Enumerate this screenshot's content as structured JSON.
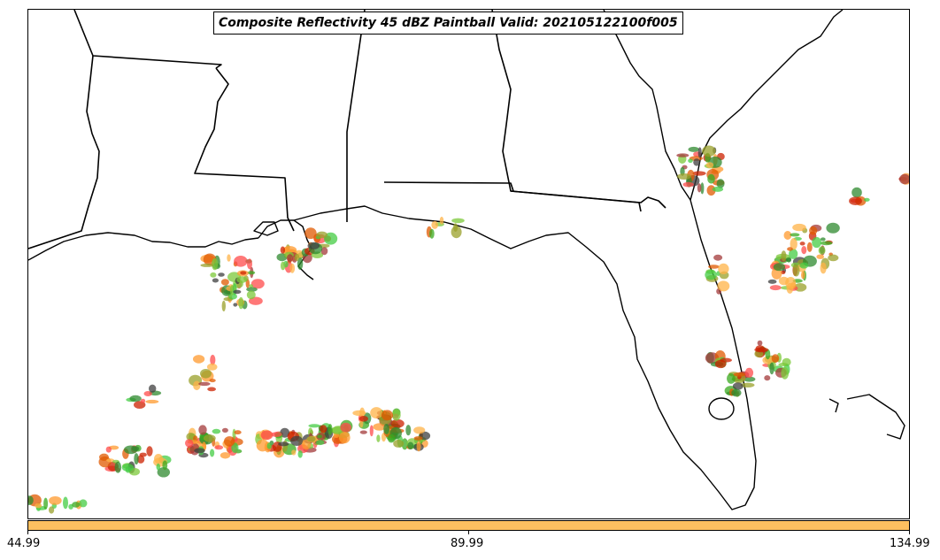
{
  "title": "Composite Reflectivity 45 dBZ Paintball Valid: 202105122100f005",
  "colors": {
    "coast": "#000000",
    "colorbar_fill": "#fdc060",
    "member_palette": [
      "#ff4b4b",
      "#e05a00",
      "#3aaa1f",
      "#a33a3a",
      "#ff9a2e",
      "#44cc44",
      "#9aa02a",
      "#2f8a2f",
      "#3f3f3f",
      "#ffb347",
      "#cc2200",
      "#7cc83a"
    ]
  },
  "colorbar": {
    "ticks": [
      "44.99",
      "89.99",
      "134.99"
    ]
  },
  "map": {
    "region": "Gulf Coast / Florida",
    "layers": [
      "coastline",
      "state-borders",
      "reflectivity-paintball"
    ]
  }
}
